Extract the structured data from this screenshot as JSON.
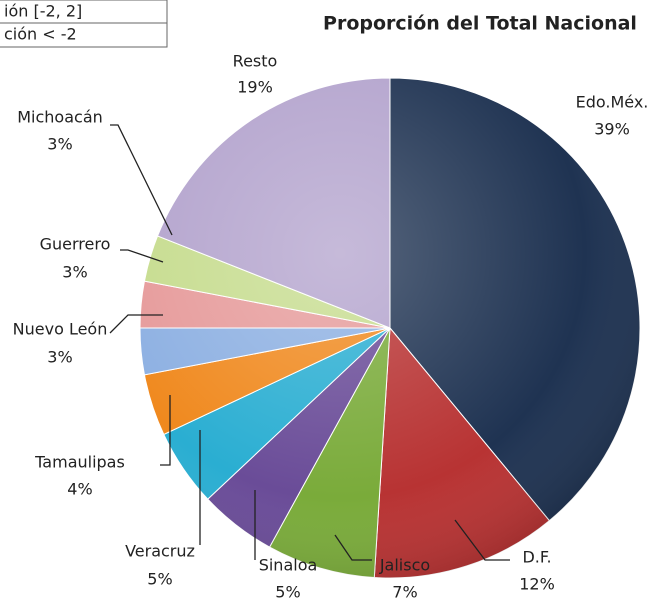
{
  "legend_table": {
    "rows": [
      "ión [-2, 2]",
      "ción < -2"
    ]
  },
  "chart_data": {
    "type": "pie",
    "title": "Proporción del Total Nacional",
    "categories": [
      "Edo.Méx.",
      "D.F.",
      "Jalisco",
      "Sinaloa",
      "Veracruz",
      "Tamaulipas",
      "Nuevo León",
      "Guerrero",
      "Michoacán",
      "Resto"
    ],
    "values": [
      39,
      12,
      7,
      5,
      5,
      4,
      3,
      3,
      3,
      19
    ],
    "value_labels": [
      "39%",
      "12%",
      "7%",
      "5%",
      "5%",
      "4%",
      "3%",
      "3%",
      "3%",
      "19%"
    ],
    "colors": [
      "#1f3352",
      "#b83333",
      "#7aab3a",
      "#6a4c98",
      "#2aaed2",
      "#f0891e",
      "#8db0e2",
      "#e69a9a",
      "#c6dc8e",
      "#b3a3cd"
    ]
  }
}
